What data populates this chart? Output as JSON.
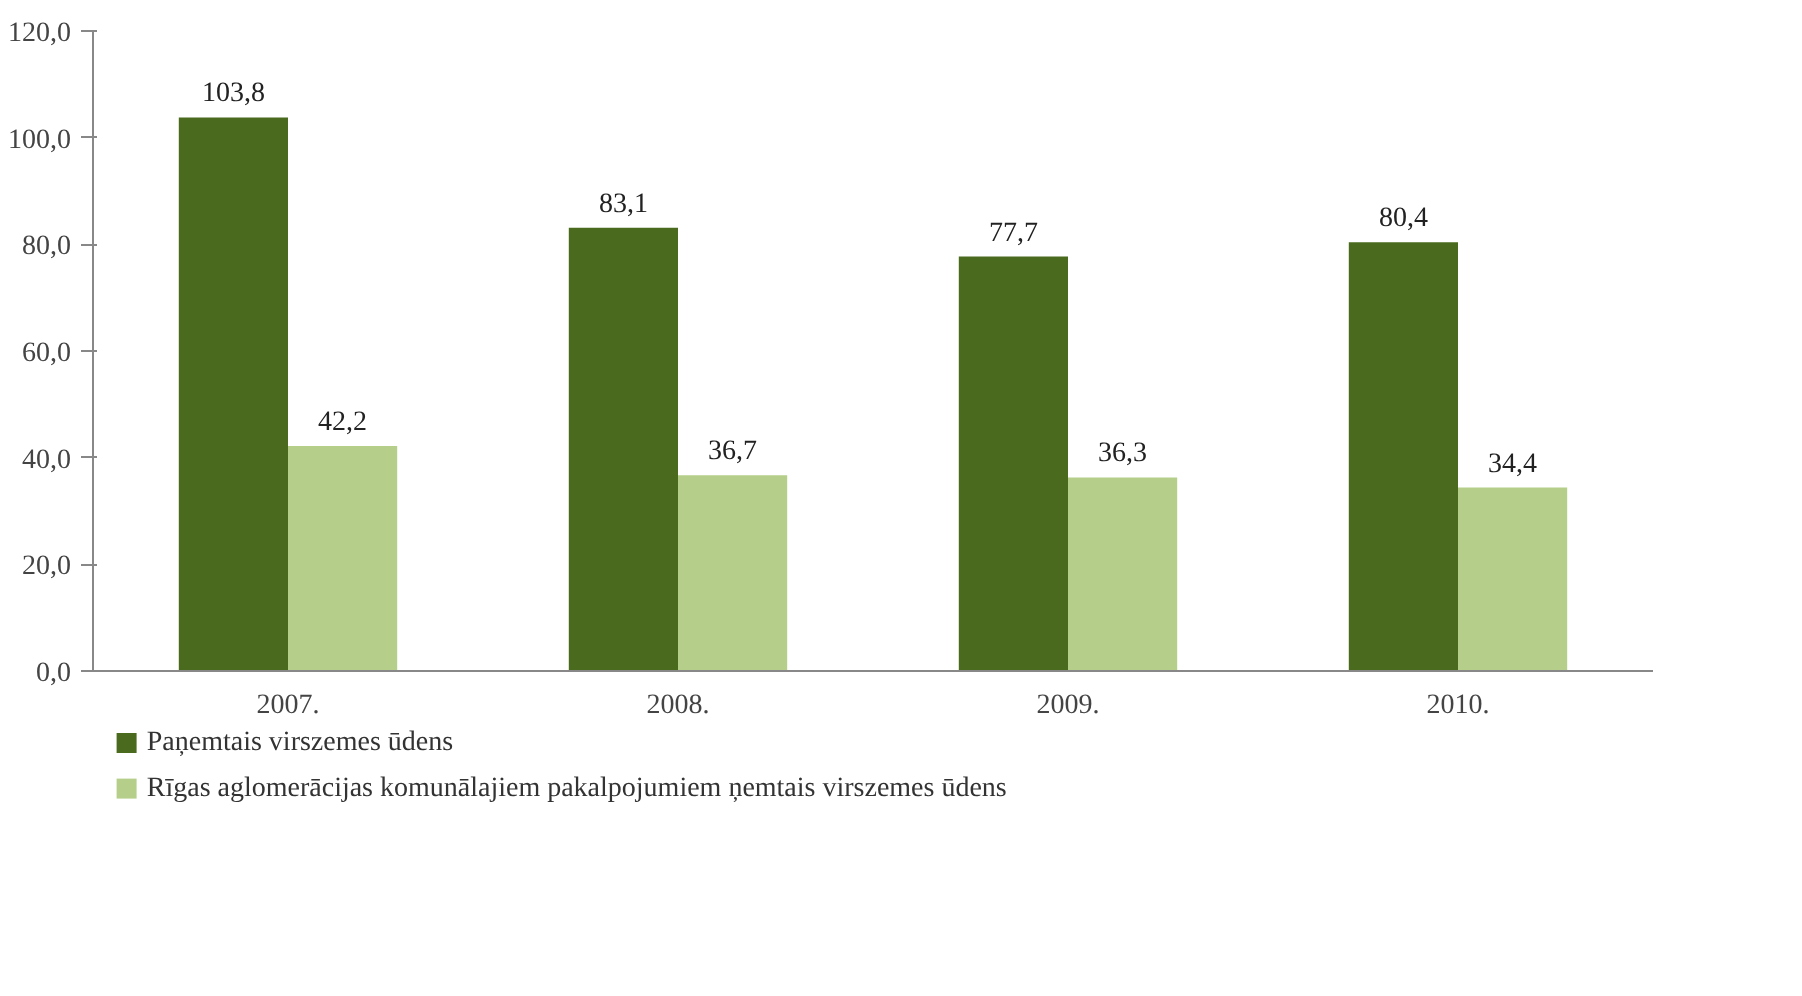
{
  "chart_data": {
    "type": "bar",
    "categories": [
      "2007.",
      "2008.",
      "2009.",
      "2010."
    ],
    "series": [
      {
        "name": "Paņemtais virszemes ūdens",
        "color": "#4a6b1e",
        "values": [
          103.8,
          83.1,
          77.7,
          80.4
        ],
        "value_labels": [
          "103,8",
          "83,1",
          "77,7",
          "80,4"
        ]
      },
      {
        "name": "Rīgas aglomerācijas komunālajiem pakalpojumiem ņemtais virszemes ūdens",
        "color": "#b5cf8a",
        "values": [
          42.2,
          36.7,
          36.3,
          34.4
        ],
        "value_labels": [
          "42,2",
          "36,7",
          "36,3",
          "34,4"
        ]
      }
    ],
    "ylim": [
      0,
      120
    ],
    "yticks": [
      {
        "value": 0,
        "label": "0,0"
      },
      {
        "value": 20,
        "label": "20,0"
      },
      {
        "value": 40,
        "label": "40,0"
      },
      {
        "value": 60,
        "label": "60,0"
      },
      {
        "value": 80,
        "label": "80,0"
      },
      {
        "value": 100,
        "label": "100,0"
      },
      {
        "value": 120,
        "label": "120,0"
      }
    ],
    "grid": false,
    "legend": "bottom left"
  }
}
